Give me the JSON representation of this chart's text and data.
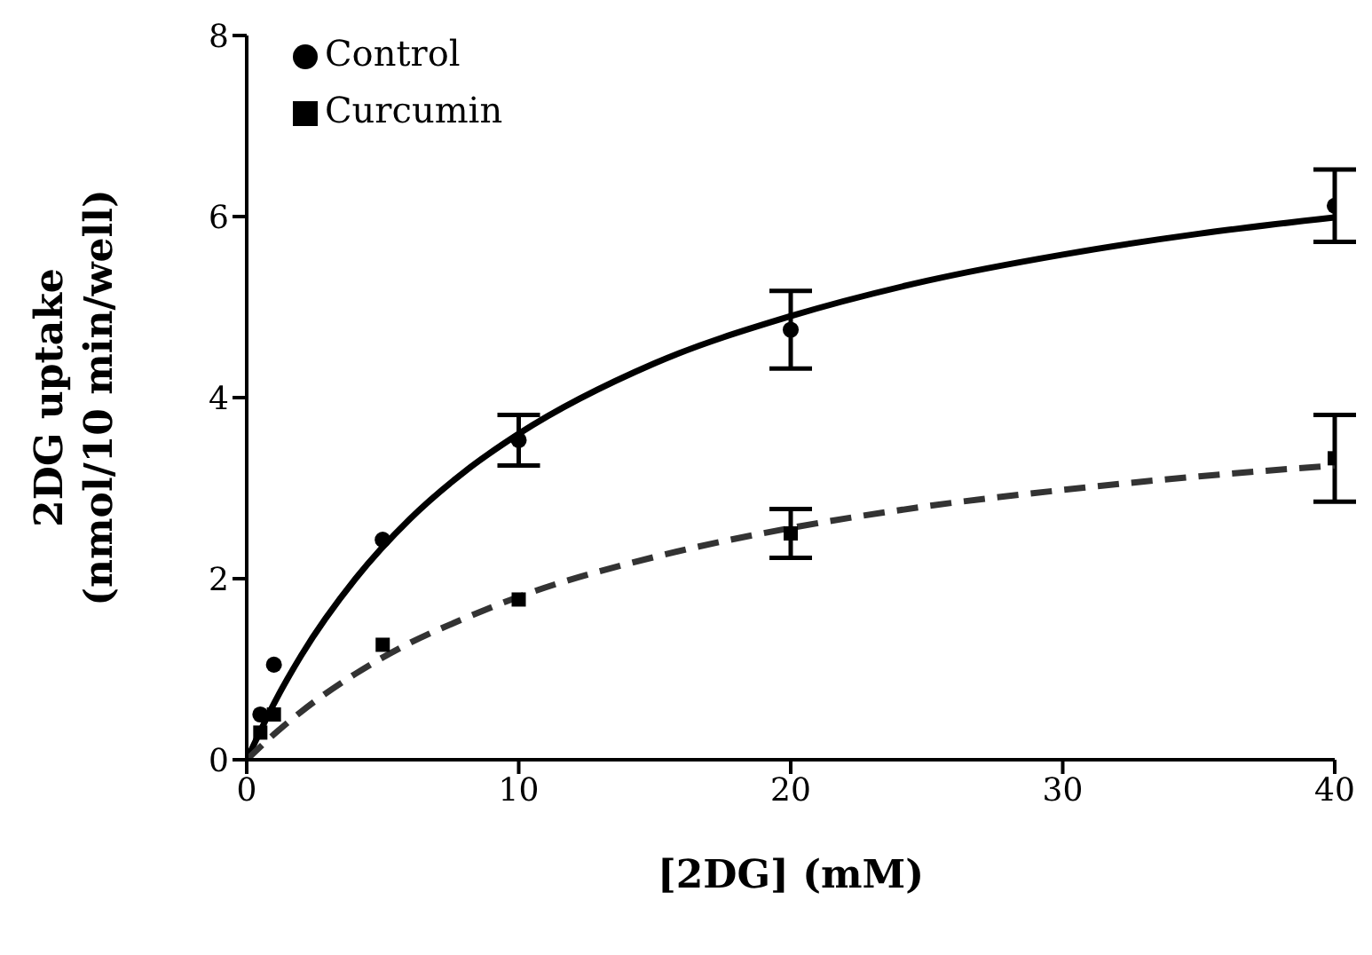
{
  "chart_data": {
    "type": "scatter",
    "xlabel": "[2DG] (mM)",
    "ylabel": "2DG uptake\n(nmol/10 min/well)",
    "x": [
      0.5,
      1,
      5,
      10,
      20,
      40
    ],
    "series": [
      {
        "name": "Control",
        "color": "#000000",
        "marker": "circle",
        "values": [
          0.5,
          1.05,
          2.43,
          3.53,
          4.75,
          6.12
        ],
        "errors": [
          null,
          null,
          null,
          0.28,
          0.43,
          0.4
        ]
      },
      {
        "name": "Curcumin",
        "color": "#000000",
        "marker": "square",
        "values": [
          0.3,
          0.5,
          1.27,
          1.77,
          2.5,
          3.33
        ],
        "errors": [
          null,
          null,
          null,
          null,
          0.27,
          0.48
        ]
      },
      {
        "type": "line",
        "color": "#000000",
        "line_style": "solid",
        "x": [
          0,
          1,
          2,
          4,
          6,
          8,
          10,
          15,
          20,
          25,
          30,
          35,
          40
        ],
        "values": [
          0,
          0.62,
          1.15,
          2.0,
          2.66,
          3.18,
          3.6,
          4.38,
          4.9,
          5.29,
          5.58,
          5.81,
          5.99
        ]
      },
      {
        "type": "line",
        "color": "#333333",
        "line_style": "dashed",
        "x": [
          0,
          1,
          2,
          4,
          6,
          8,
          10,
          15,
          20,
          25,
          30,
          35,
          40
        ],
        "values": [
          0,
          0.28,
          0.53,
          0.95,
          1.29,
          1.56,
          1.8,
          2.24,
          2.56,
          2.8,
          2.98,
          3.13,
          3.25
        ]
      }
    ],
    "xlim": [
      0,
      40
    ],
    "xticks": [
      0,
      10,
      20,
      30,
      40
    ],
    "ylim": [
      0,
      8
    ],
    "yticks": [
      0,
      2,
      4,
      6,
      8
    ],
    "grid": false,
    "legend": "top left"
  }
}
